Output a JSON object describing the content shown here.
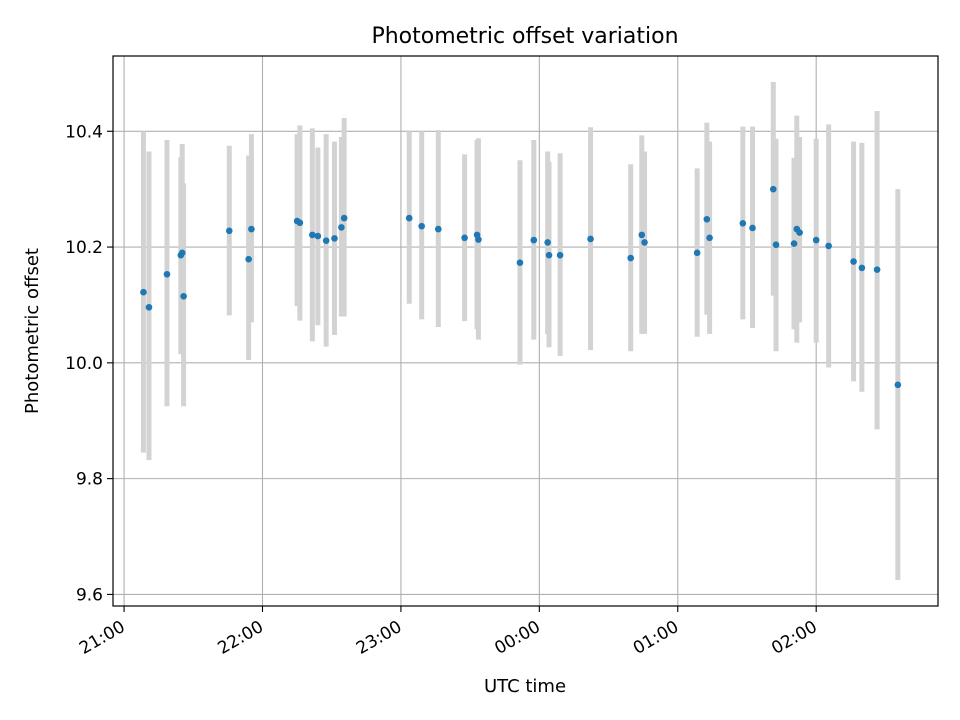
{
  "chart_data": {
    "type": "scatter",
    "title": "Photometric offset variation",
    "xlabel": "UTC time",
    "ylabel": "Photometric offset",
    "x_tick_labels": [
      "21:00",
      "22:00",
      "23:00",
      "00:00",
      "01:00",
      "02:00"
    ],
    "x_tick_hours": [
      21,
      22,
      23,
      24,
      25,
      26
    ],
    "y_ticks": [
      9.6,
      9.8,
      10.0,
      10.2,
      10.4
    ],
    "y_tick_labels": [
      "9.6",
      "9.8",
      "10.0",
      "10.2",
      "10.4"
    ],
    "xlim_hours": [
      20.92,
      26.88
    ],
    "ylim": [
      9.58,
      10.53
    ],
    "grid": true,
    "errorbar_color": "#d3d3d3",
    "point_color": "#1f77b4",
    "series": [
      {
        "x_hours": [
          21.14,
          21.18,
          21.31,
          21.41,
          21.42,
          21.43,
          21.76,
          21.9,
          21.92,
          22.25,
          22.27,
          22.36,
          22.4,
          22.46,
          22.52,
          22.57,
          22.59,
          23.06,
          23.15,
          23.27,
          23.46,
          23.55,
          23.56,
          23.86,
          23.96,
          24.06,
          24.07,
          24.15,
          24.37,
          24.66,
          24.74,
          24.76,
          25.14,
          25.21,
          25.23,
          25.47,
          25.54,
          25.69,
          25.71,
          25.84,
          25.86,
          25.88,
          26.0,
          26.09,
          26.27,
          26.33,
          26.44,
          26.59
        ],
        "y": [
          10.122,
          10.096,
          10.153,
          10.186,
          10.19,
          10.115,
          10.228,
          10.179,
          10.231,
          10.245,
          10.242,
          10.221,
          10.219,
          10.211,
          10.215,
          10.234,
          10.25,
          10.25,
          10.236,
          10.231,
          10.216,
          10.221,
          10.213,
          10.173,
          10.212,
          10.208,
          10.186,
          10.186,
          10.214,
          10.181,
          10.221,
          10.208,
          10.19,
          10.248,
          10.216,
          10.241,
          10.233,
          10.3,
          10.204,
          10.206,
          10.231,
          10.225,
          10.212,
          10.202,
          10.175,
          10.164,
          10.161,
          9.962
        ],
        "err_low": [
          9.845,
          9.832,
          9.925,
          10.015,
          10.015,
          9.925,
          10.082,
          10.005,
          10.07,
          10.098,
          10.073,
          10.037,
          10.065,
          10.028,
          10.048,
          10.08,
          10.08,
          10.102,
          10.075,
          10.062,
          10.072,
          10.058,
          10.04,
          9.997,
          10.04,
          10.05,
          10.027,
          10.012,
          10.022,
          10.02,
          10.05,
          10.05,
          10.045,
          10.083,
          10.05,
          10.075,
          10.06,
          10.116,
          10.02,
          10.058,
          10.035,
          10.07,
          10.035,
          9.992,
          9.968,
          9.95,
          9.885,
          9.625
        ],
        "err_high": [
          10.4,
          10.365,
          10.385,
          10.355,
          10.378,
          10.31,
          10.375,
          10.358,
          10.395,
          10.395,
          10.41,
          10.405,
          10.372,
          10.395,
          10.382,
          10.39,
          10.423,
          10.4,
          10.4,
          10.402,
          10.36,
          10.385,
          10.388,
          10.35,
          10.385,
          10.365,
          10.347,
          10.362,
          10.407,
          10.343,
          10.393,
          10.365,
          10.336,
          10.415,
          10.382,
          10.408,
          10.408,
          10.485,
          10.387,
          10.354,
          10.427,
          10.39,
          10.387,
          10.412,
          10.382,
          10.38,
          10.435,
          10.3
        ]
      }
    ]
  }
}
